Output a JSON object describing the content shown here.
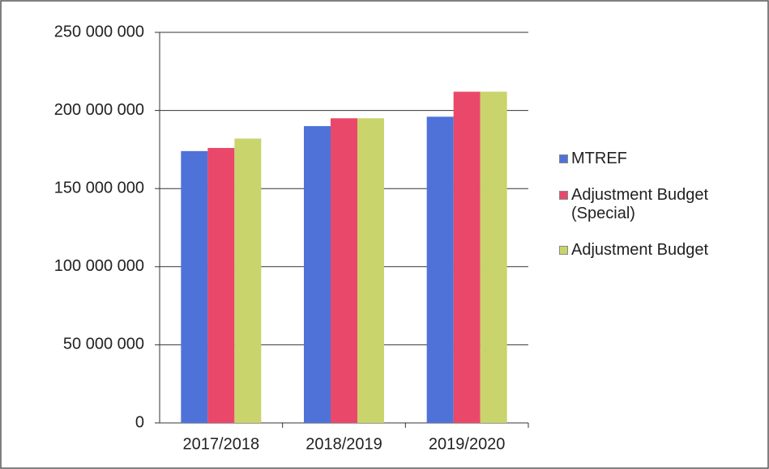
{
  "chart_data": {
    "type": "bar",
    "categories": [
      "2017/2018",
      "2018/2019",
      "2019/2020"
    ],
    "series": [
      {
        "name": "MTREF",
        "color": "#4f72d9",
        "values": [
          174000000,
          190000000,
          196000000
        ]
      },
      {
        "name": "Adjustment Budget (Special)",
        "color": "#e9486a",
        "values": [
          176000000,
          195000000,
          212000000
        ]
      },
      {
        "name": "Adjustment Budget",
        "color": "#c9d46c",
        "values": [
          182000000,
          195000000,
          212000000
        ]
      }
    ],
    "ylim": [
      0,
      250000000
    ],
    "yticks": [
      {
        "value": 0,
        "label": "0"
      },
      {
        "value": 50000000,
        "label": "50 000 000"
      },
      {
        "value": 100000000,
        "label": "100 000 000"
      },
      {
        "value": 150000000,
        "label": "150 000 000"
      },
      {
        "value": 200000000,
        "label": "200 000 000"
      },
      {
        "value": 250000000,
        "label": "250 000 000"
      }
    ],
    "grid": true,
    "legend": "right"
  }
}
